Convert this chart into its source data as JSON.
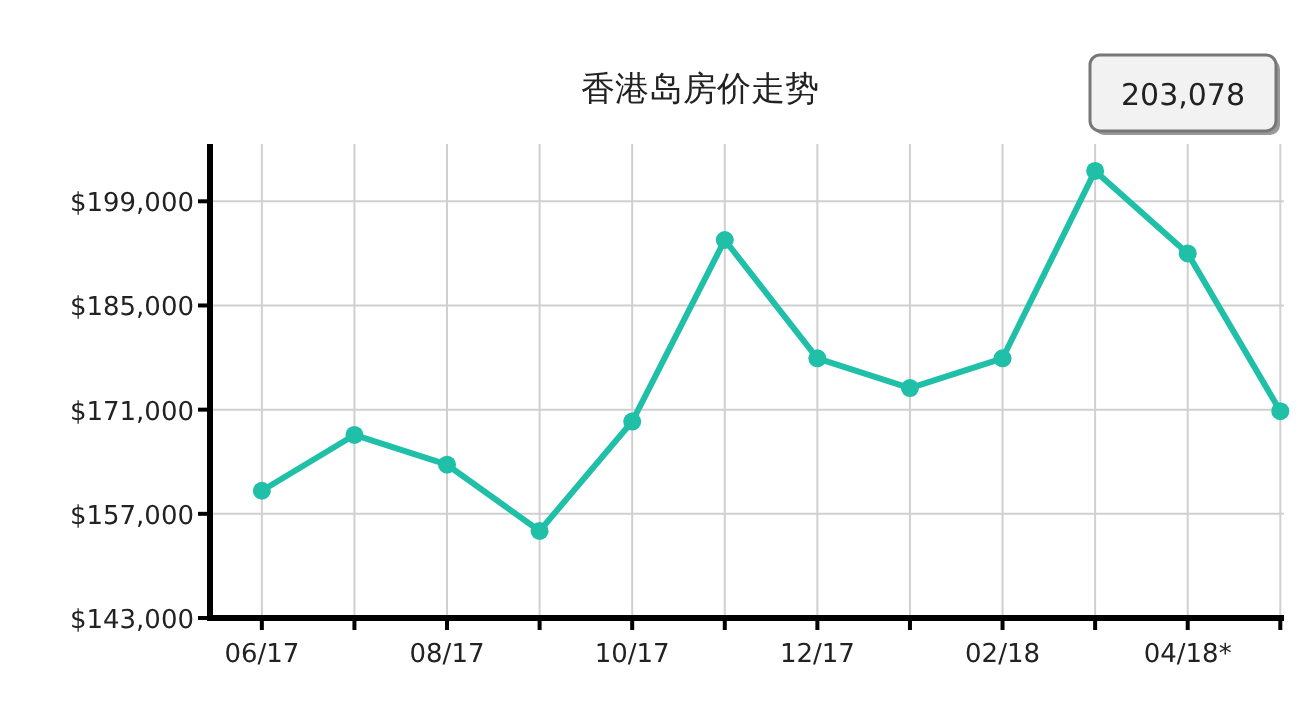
{
  "chart_data": {
    "type": "line",
    "title": "香港岛房价走势",
    "categories": [
      "06/17",
      null,
      "08/17",
      null,
      "10/17",
      null,
      "12/17",
      null,
      "02/18",
      null,
      "04/18*",
      null
    ],
    "series": [
      {
        "color": "#1fbfa8",
        "values": [
          160100,
          167600,
          163600,
          154700,
          169400,
          193800,
          177900,
          173900,
          177900,
          203078,
          192000,
          170800
        ],
        "value_labels": [
          null,
          null,
          null,
          null,
          null,
          null,
          null,
          null,
          null,
          "203,078",
          null,
          null
        ]
      }
    ],
    "ylim": [
      143000,
      206700
    ],
    "yticks": [
      {
        "value": 143000,
        "label": "$143,000"
      },
      {
        "value": 157000,
        "label": "$157,000"
      },
      {
        "value": 171000,
        "label": "$171,000"
      },
      {
        "value": 185000,
        "label": "$185,000"
      },
      {
        "value": 199000,
        "label": "$199,000"
      }
    ],
    "grid": true,
    "marker": "circle",
    "line_style": "solid"
  }
}
